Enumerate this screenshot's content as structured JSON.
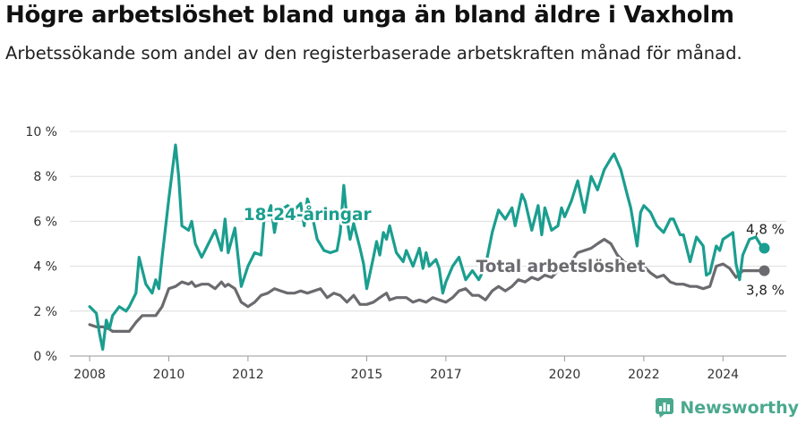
{
  "title": "Högre arbetslöshet bland unga än bland äldre i Vaxholm",
  "subtitle": "Arbetssökande som andel av den registerbaserade arbetskraften månad för månad.",
  "brand": {
    "name": "Newsworthy"
  },
  "chart_data": {
    "type": "line",
    "ylim": [
      0,
      10
    ],
    "yticks": [
      0,
      2,
      4,
      6,
      8,
      10
    ],
    "ytick_labels": [
      "0 %",
      "2 %",
      "4 %",
      "6 %",
      "8 %",
      "10 %"
    ],
    "xlim": [
      2007.5,
      2025.6
    ],
    "xticks": [
      2008,
      2010,
      2012,
      2015,
      2017,
      2020,
      2022,
      2024
    ],
    "xtick_labels": [
      "2008",
      "2010",
      "2012",
      "2015",
      "2017",
      "2020",
      "2022",
      "2024"
    ],
    "grid": true,
    "series": [
      {
        "name": "18-24-åringar",
        "color": "#1a9e8f",
        "end_label": "4,8 %",
        "points": [
          [
            2008.0,
            2.2
          ],
          [
            2008.17,
            1.9
          ],
          [
            2008.25,
            1.0
          ],
          [
            2008.33,
            0.3
          ],
          [
            2008.42,
            1.6
          ],
          [
            2008.5,
            1.2
          ],
          [
            2008.58,
            1.8
          ],
          [
            2008.75,
            2.2
          ],
          [
            2008.92,
            2.0
          ],
          [
            2009.0,
            2.2
          ],
          [
            2009.17,
            2.8
          ],
          [
            2009.25,
            4.4
          ],
          [
            2009.42,
            3.2
          ],
          [
            2009.58,
            2.8
          ],
          [
            2009.67,
            3.4
          ],
          [
            2009.75,
            3.0
          ],
          [
            2009.83,
            4.4
          ],
          [
            2010.0,
            7.0
          ],
          [
            2010.17,
            9.4
          ],
          [
            2010.25,
            8.0
          ],
          [
            2010.33,
            5.8
          ],
          [
            2010.5,
            5.6
          ],
          [
            2010.58,
            6.0
          ],
          [
            2010.67,
            5.0
          ],
          [
            2010.83,
            4.4
          ],
          [
            2011.0,
            5.0
          ],
          [
            2011.17,
            5.6
          ],
          [
            2011.33,
            4.7
          ],
          [
            2011.42,
            6.1
          ],
          [
            2011.5,
            4.6
          ],
          [
            2011.67,
            5.7
          ],
          [
            2011.83,
            3.1
          ],
          [
            2012.0,
            4.0
          ],
          [
            2012.17,
            4.6
          ],
          [
            2012.33,
            4.5
          ],
          [
            2012.42,
            6.4
          ],
          [
            2012.5,
            6.3
          ],
          [
            2012.58,
            6.7
          ],
          [
            2012.67,
            5.5
          ],
          [
            2012.75,
            6.3
          ],
          [
            2012.83,
            6.5
          ],
          [
            2013.0,
            6.7
          ],
          [
            2013.17,
            6.5
          ],
          [
            2013.33,
            6.8
          ],
          [
            2013.42,
            5.8
          ],
          [
            2013.5,
            7.0
          ],
          [
            2013.58,
            6.6
          ],
          [
            2013.75,
            5.2
          ],
          [
            2013.92,
            4.7
          ],
          [
            2014.08,
            4.6
          ],
          [
            2014.25,
            4.7
          ],
          [
            2014.33,
            5.5
          ],
          [
            2014.42,
            7.6
          ],
          [
            2014.5,
            6.1
          ],
          [
            2014.58,
            5.2
          ],
          [
            2014.67,
            5.9
          ],
          [
            2014.83,
            4.8
          ],
          [
            2014.92,
            4.1
          ],
          [
            2015.0,
            3.0
          ],
          [
            2015.17,
            4.4
          ],
          [
            2015.25,
            5.1
          ],
          [
            2015.33,
            4.5
          ],
          [
            2015.42,
            5.5
          ],
          [
            2015.5,
            5.2
          ],
          [
            2015.58,
            5.8
          ],
          [
            2015.75,
            4.6
          ],
          [
            2015.92,
            4.2
          ],
          [
            2016.0,
            4.7
          ],
          [
            2016.17,
            4.0
          ],
          [
            2016.33,
            4.8
          ],
          [
            2016.42,
            3.9
          ],
          [
            2016.5,
            4.6
          ],
          [
            2016.58,
            4.0
          ],
          [
            2016.75,
            4.3
          ],
          [
            2016.83,
            3.9
          ],
          [
            2016.92,
            2.8
          ],
          [
            2017.0,
            3.3
          ],
          [
            2017.17,
            4.0
          ],
          [
            2017.33,
            4.4
          ],
          [
            2017.5,
            3.4
          ],
          [
            2017.67,
            3.8
          ],
          [
            2017.83,
            3.4
          ],
          [
            2018.0,
            4.0
          ],
          [
            2018.17,
            5.5
          ],
          [
            2018.33,
            6.5
          ],
          [
            2018.5,
            6.1
          ],
          [
            2018.67,
            6.6
          ],
          [
            2018.75,
            5.8
          ],
          [
            2018.92,
            7.2
          ],
          [
            2019.0,
            6.9
          ],
          [
            2019.17,
            5.6
          ],
          [
            2019.33,
            6.7
          ],
          [
            2019.42,
            5.4
          ],
          [
            2019.5,
            6.6
          ],
          [
            2019.67,
            5.6
          ],
          [
            2019.83,
            5.8
          ],
          [
            2019.92,
            6.6
          ],
          [
            2020.0,
            6.2
          ],
          [
            2020.17,
            6.9
          ],
          [
            2020.33,
            7.8
          ],
          [
            2020.5,
            6.4
          ],
          [
            2020.67,
            8.0
          ],
          [
            2020.83,
            7.4
          ],
          [
            2021.0,
            8.3
          ],
          [
            2021.17,
            8.8
          ],
          [
            2021.25,
            9.0
          ],
          [
            2021.42,
            8.3
          ],
          [
            2021.58,
            7.2
          ],
          [
            2021.67,
            6.6
          ],
          [
            2021.83,
            4.9
          ],
          [
            2021.92,
            6.4
          ],
          [
            2022.0,
            6.7
          ],
          [
            2022.17,
            6.4
          ],
          [
            2022.33,
            5.8
          ],
          [
            2022.5,
            5.5
          ],
          [
            2022.67,
            6.1
          ],
          [
            2022.75,
            6.1
          ],
          [
            2022.92,
            5.4
          ],
          [
            2023.0,
            5.4
          ],
          [
            2023.17,
            4.2
          ],
          [
            2023.33,
            5.3
          ],
          [
            2023.5,
            4.9
          ],
          [
            2023.58,
            3.6
          ],
          [
            2023.67,
            3.7
          ],
          [
            2023.83,
            4.9
          ],
          [
            2023.92,
            4.7
          ],
          [
            2024.0,
            5.2
          ],
          [
            2024.17,
            5.4
          ],
          [
            2024.25,
            5.5
          ],
          [
            2024.33,
            4.1
          ],
          [
            2024.42,
            3.4
          ],
          [
            2024.5,
            4.5
          ],
          [
            2024.67,
            5.2
          ],
          [
            2024.83,
            5.3
          ],
          [
            2025.0,
            4.8
          ]
        ]
      },
      {
        "name": "Total arbetslöshet",
        "color": "#6b6b6f",
        "end_label": "3,8 %",
        "points": [
          [
            2008.0,
            1.4
          ],
          [
            2008.17,
            1.3
          ],
          [
            2008.33,
            1.3
          ],
          [
            2008.5,
            1.2
          ],
          [
            2008.58,
            1.1
          ],
          [
            2008.75,
            1.1
          ],
          [
            2009.0,
            1.1
          ],
          [
            2009.17,
            1.5
          ],
          [
            2009.33,
            1.8
          ],
          [
            2009.5,
            1.8
          ],
          [
            2009.67,
            1.8
          ],
          [
            2009.83,
            2.2
          ],
          [
            2010.0,
            3.0
          ],
          [
            2010.17,
            3.1
          ],
          [
            2010.33,
            3.3
          ],
          [
            2010.5,
            3.2
          ],
          [
            2010.58,
            3.3
          ],
          [
            2010.67,
            3.1
          ],
          [
            2010.83,
            3.2
          ],
          [
            2011.0,
            3.2
          ],
          [
            2011.17,
            3.0
          ],
          [
            2011.33,
            3.3
          ],
          [
            2011.42,
            3.1
          ],
          [
            2011.5,
            3.2
          ],
          [
            2011.67,
            3.0
          ],
          [
            2011.83,
            2.4
          ],
          [
            2012.0,
            2.2
          ],
          [
            2012.17,
            2.4
          ],
          [
            2012.33,
            2.7
          ],
          [
            2012.5,
            2.8
          ],
          [
            2012.67,
            3.0
          ],
          [
            2012.83,
            2.9
          ],
          [
            2013.0,
            2.8
          ],
          [
            2013.17,
            2.8
          ],
          [
            2013.33,
            2.9
          ],
          [
            2013.5,
            2.8
          ],
          [
            2013.67,
            2.9
          ],
          [
            2013.83,
            3.0
          ],
          [
            2014.0,
            2.6
          ],
          [
            2014.17,
            2.8
          ],
          [
            2014.33,
            2.7
          ],
          [
            2014.5,
            2.4
          ],
          [
            2014.67,
            2.7
          ],
          [
            2014.83,
            2.3
          ],
          [
            2015.0,
            2.3
          ],
          [
            2015.17,
            2.4
          ],
          [
            2015.33,
            2.6
          ],
          [
            2015.5,
            2.8
          ],
          [
            2015.58,
            2.5
          ],
          [
            2015.75,
            2.6
          ],
          [
            2016.0,
            2.6
          ],
          [
            2016.17,
            2.4
          ],
          [
            2016.33,
            2.5
          ],
          [
            2016.5,
            2.4
          ],
          [
            2016.67,
            2.6
          ],
          [
            2016.83,
            2.5
          ],
          [
            2017.0,
            2.4
          ],
          [
            2017.17,
            2.6
          ],
          [
            2017.33,
            2.9
          ],
          [
            2017.5,
            3.0
          ],
          [
            2017.67,
            2.7
          ],
          [
            2017.83,
            2.7
          ],
          [
            2018.0,
            2.5
          ],
          [
            2018.17,
            2.9
          ],
          [
            2018.33,
            3.1
          ],
          [
            2018.5,
            2.9
          ],
          [
            2018.67,
            3.1
          ],
          [
            2018.83,
            3.4
          ],
          [
            2019.0,
            3.3
          ],
          [
            2019.17,
            3.5
          ],
          [
            2019.33,
            3.4
          ],
          [
            2019.5,
            3.6
          ],
          [
            2019.67,
            3.5
          ],
          [
            2019.83,
            3.8
          ],
          [
            2020.0,
            4.0
          ],
          [
            2020.17,
            4.2
          ],
          [
            2020.33,
            4.6
          ],
          [
            2020.5,
            4.7
          ],
          [
            2020.67,
            4.8
          ],
          [
            2020.83,
            5.0
          ],
          [
            2021.0,
            5.2
          ],
          [
            2021.17,
            5.0
          ],
          [
            2021.33,
            4.5
          ],
          [
            2021.5,
            4.2
          ],
          [
            2021.67,
            4.0
          ],
          [
            2021.83,
            3.8
          ],
          [
            2022.0,
            4.0
          ],
          [
            2022.17,
            3.7
          ],
          [
            2022.33,
            3.5
          ],
          [
            2022.5,
            3.6
          ],
          [
            2022.67,
            3.3
          ],
          [
            2022.83,
            3.2
          ],
          [
            2023.0,
            3.2
          ],
          [
            2023.17,
            3.1
          ],
          [
            2023.33,
            3.1
          ],
          [
            2023.5,
            3.0
          ],
          [
            2023.67,
            3.1
          ],
          [
            2023.83,
            4.0
          ],
          [
            2024.0,
            4.1
          ],
          [
            2024.17,
            3.9
          ],
          [
            2024.33,
            3.5
          ],
          [
            2024.5,
            3.8
          ],
          [
            2024.67,
            3.8
          ],
          [
            2024.83,
            3.8
          ],
          [
            2025.0,
            3.8
          ]
        ]
      }
    ]
  }
}
